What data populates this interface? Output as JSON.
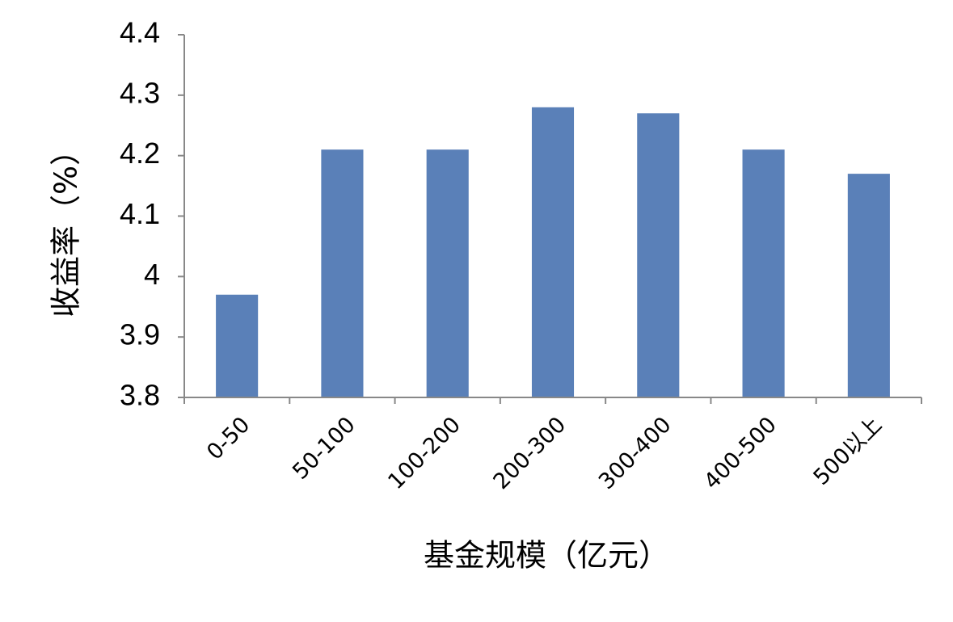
{
  "chart_data": {
    "type": "bar",
    "x_label": "基金规模（亿元）",
    "y_label": "收益率（%）",
    "categories": [
      "0-50",
      "50-100",
      "100-200",
      "200-300",
      "300-400",
      "400-500",
      "500以上"
    ],
    "values": [
      3.97,
      4.21,
      4.21,
      4.28,
      4.27,
      4.21,
      4.17
    ],
    "color": "#5a80b8",
    "ylim": [
      3.8,
      4.4
    ],
    "yticks": [
      3.8,
      3.9,
      4,
      4.1,
      4.2,
      4.3,
      4.4
    ],
    "grid": false
  }
}
